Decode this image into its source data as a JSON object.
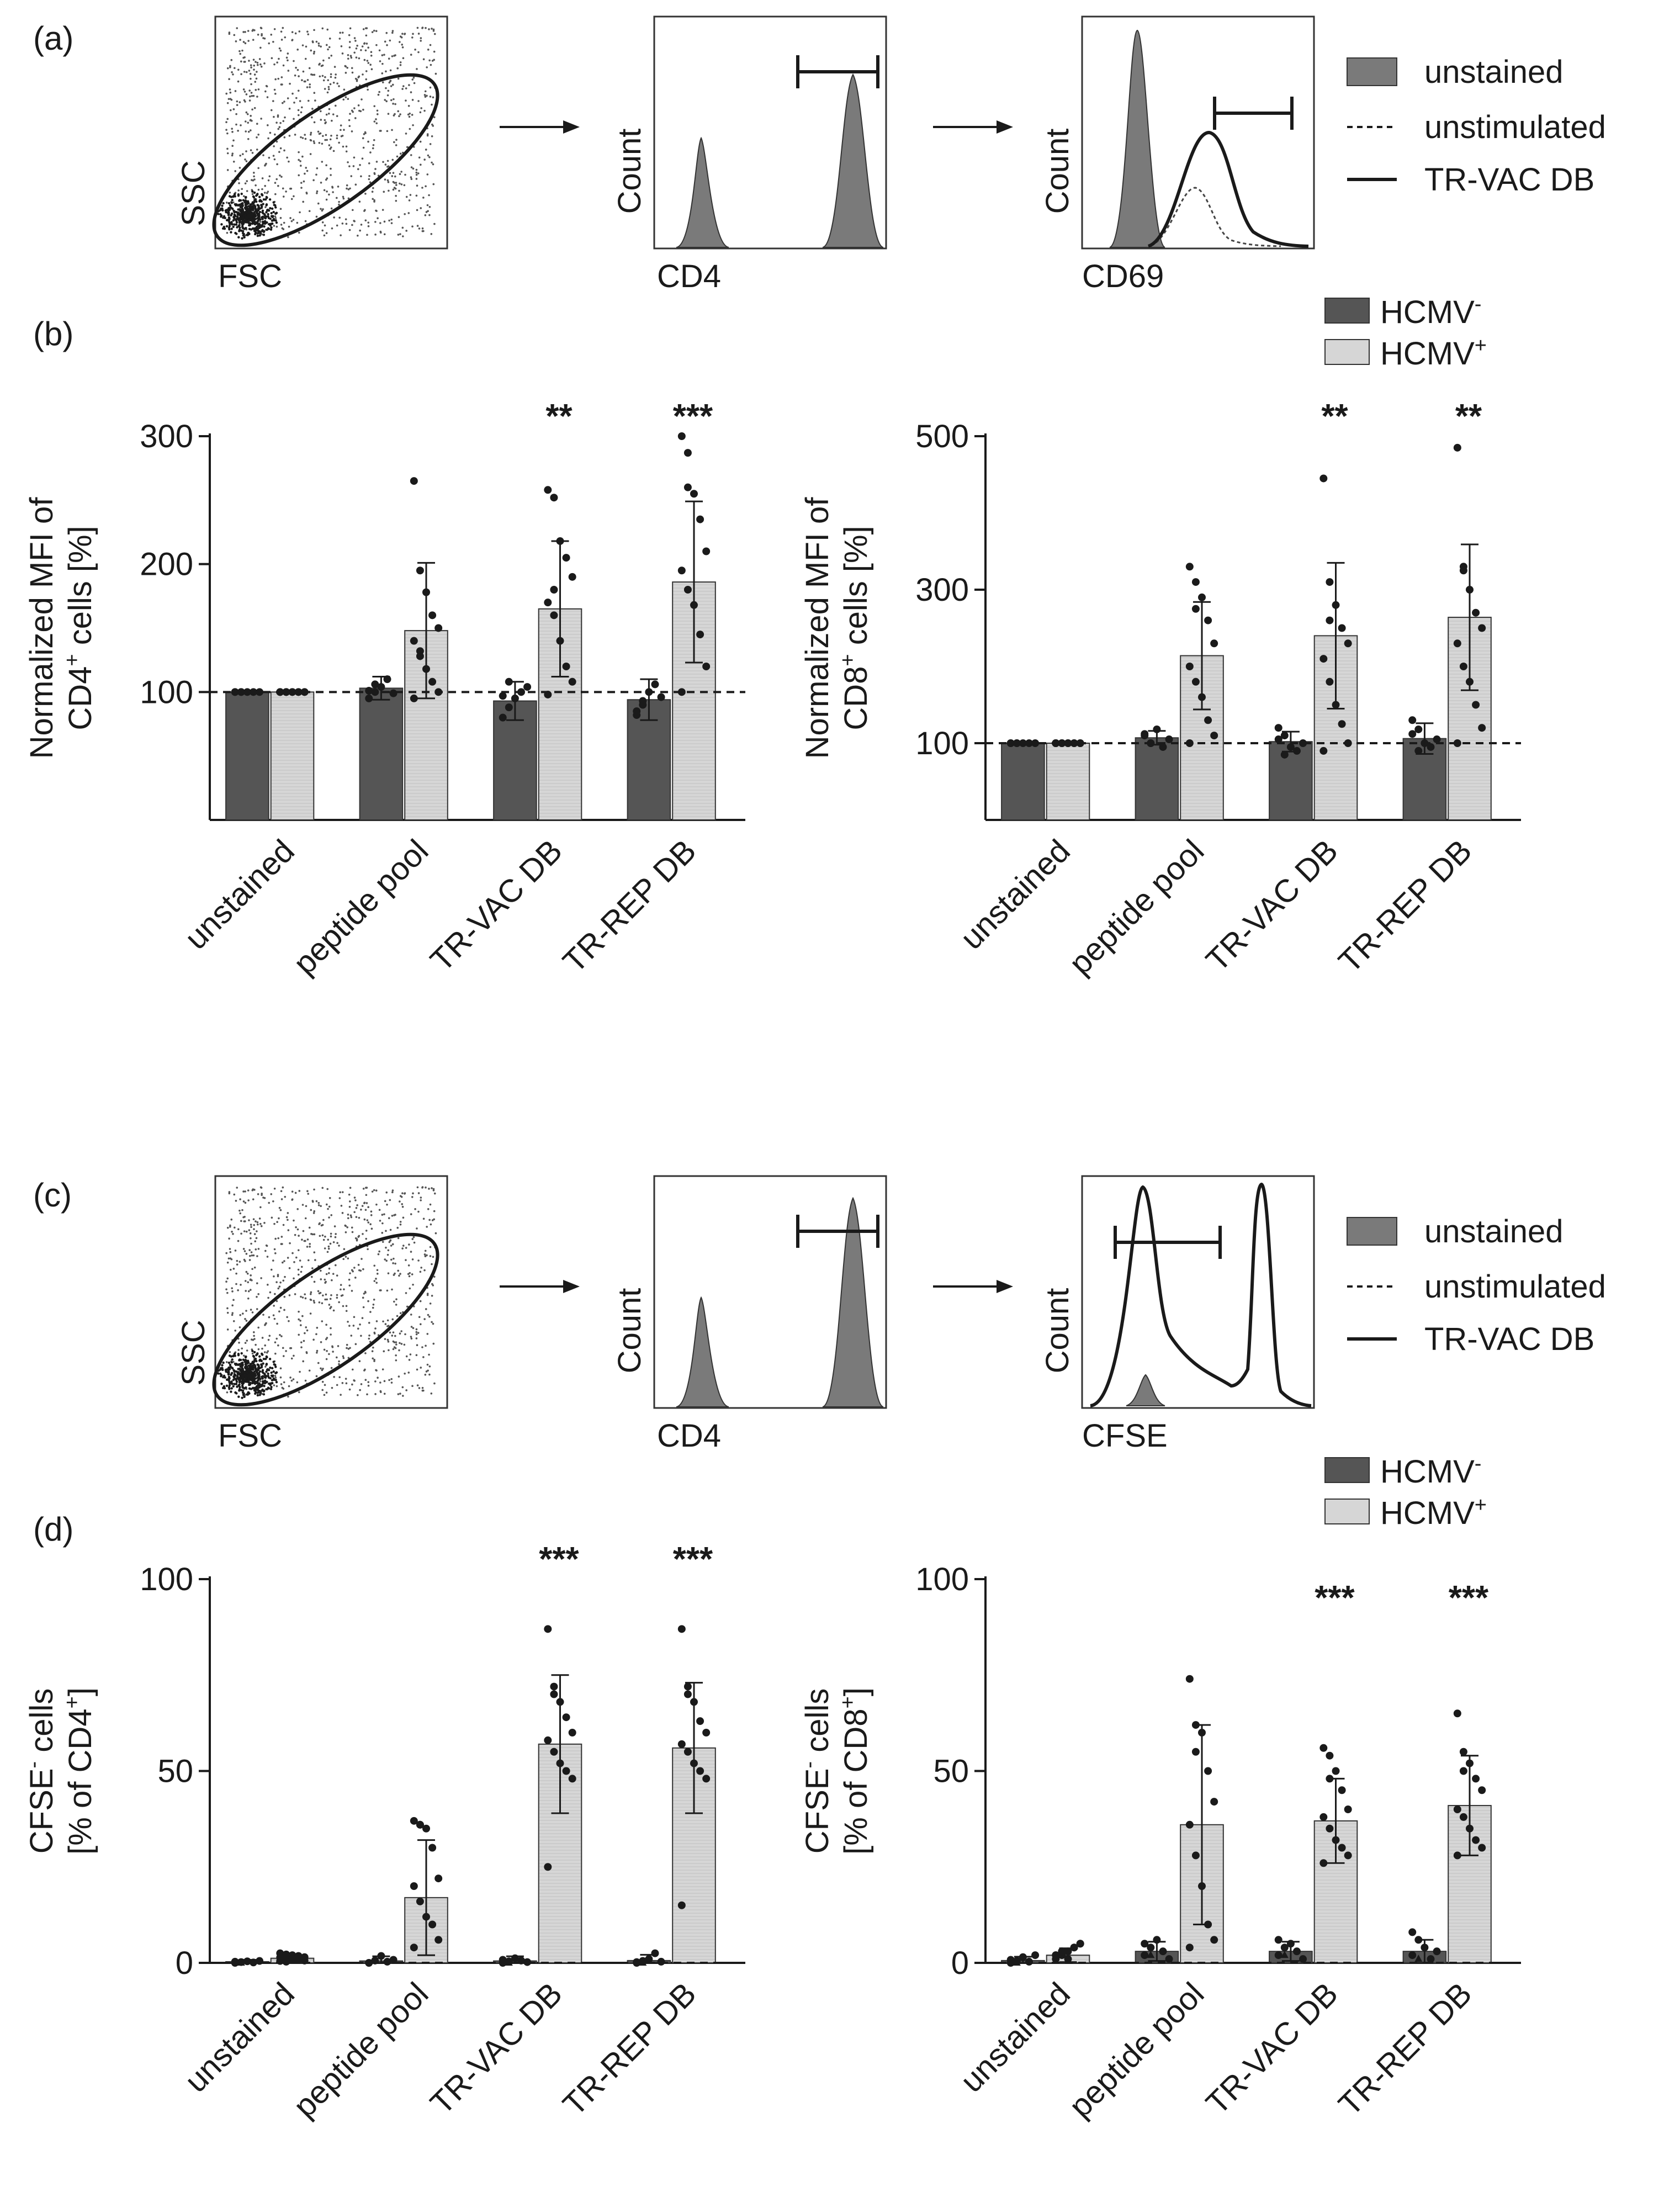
{
  "colors": {
    "hcmv_neg": "#555555",
    "hcmv_pos": "#d6d6d6",
    "flow_fill": "#7a7a7a",
    "ink": "#1a1a1a"
  },
  "panel_labels": {
    "a": "(a)",
    "b": "(b)",
    "c": "(c)",
    "d": "(d)"
  },
  "flow_labels": {
    "ssc": "SSC",
    "fsc": "FSC",
    "count": "Count",
    "cd4": "CD4",
    "cd69": "CD69",
    "cfse": "CFSE"
  },
  "flow_legend": {
    "unstained": "unstained",
    "unstimulated": "unstimulated",
    "trvac": "TR-VAC DB"
  },
  "group_legend": {
    "neg": "HCMV",
    "neg_sup": "-",
    "pos": "HCMV",
    "pos_sup": "+"
  },
  "categories": [
    "unstained",
    "peptide pool",
    "TR-VAC DB",
    "TR-REP DB"
  ],
  "chart_data": [
    {
      "id": "b_cd4",
      "type": "bar",
      "ylabel_line1": "Normalized MFI of",
      "ylabel_line2": "CD4",
      "ylabel_line2_sup": "+",
      "ylabel_line2_tail": " cells [%]",
      "ylim": [
        0,
        300
      ],
      "yticks": [
        100,
        200,
        300
      ],
      "reference_line": 100,
      "categories": [
        "unstained",
        "peptide pool",
        "TR-VAC DB",
        "TR-REP DB"
      ],
      "series": [
        {
          "name": "HCMV-",
          "mean": [
            100,
            103,
            93,
            94
          ],
          "sd": [
            0,
            9,
            15,
            16
          ]
        },
        {
          "name": "HCMV+",
          "mean": [
            100,
            148,
            165,
            186
          ],
          "sd": [
            0,
            53,
            53,
            63
          ]
        }
      ],
      "significance": [
        "",
        "",
        "**",
        "***"
      ],
      "points": {
        "neg": [
          [
            100,
            100,
            100,
            100,
            100,
            100,
            100
          ],
          [
            95,
            100,
            104,
            110,
            99,
            101,
            106
          ],
          [
            80,
            88,
            95,
            100,
            104,
            97,
            108
          ],
          [
            85,
            90,
            100,
            106,
            96,
            82,
            93
          ]
        ],
        "pos": [
          [
            100,
            100,
            100,
            100,
            100,
            100,
            100,
            100,
            100,
            100,
            100,
            100
          ],
          [
            265,
            195,
            178,
            160,
            150,
            140,
            128,
            118,
            108,
            100,
            95,
            132
          ],
          [
            258,
            252,
            218,
            205,
            190,
            170,
            160,
            140,
            120,
            108,
            98,
            180
          ],
          [
            300,
            287,
            255,
            235,
            210,
            195,
            180,
            168,
            145,
            120,
            100,
            260
          ]
        ]
      }
    },
    {
      "id": "b_cd8",
      "type": "bar",
      "ylabel_line1": "Normalized MFI of",
      "ylabel_line2": "CD8",
      "ylabel_line2_sup": "+",
      "ylabel_line2_tail": " cells [%]",
      "ylim": [
        0,
        500
      ],
      "yticks": [
        100,
        300,
        500
      ],
      "reference_line": 100,
      "categories": [
        "unstained",
        "peptide pool",
        "TR-VAC DB",
        "TR-REP DB"
      ],
      "series": [
        {
          "name": "HCMV-",
          "mean": [
            100,
            107,
            102,
            106
          ],
          "sd": [
            0,
            9,
            13,
            20
          ]
        },
        {
          "name": "HCMV+",
          "mean": [
            100,
            214,
            240,
            264
          ],
          "sd": [
            0,
            70,
            95,
            95
          ]
        }
      ],
      "significance": [
        "",
        "",
        "**",
        "**"
      ],
      "points": {
        "neg": [
          [
            100,
            100,
            100,
            100,
            100,
            100,
            100
          ],
          [
            112,
            100,
            118,
            95,
            105,
            110,
            100
          ],
          [
            120,
            110,
            95,
            90,
            100,
            105,
            85
          ],
          [
            130,
            118,
            100,
            95,
            105,
            112,
            90
          ]
        ],
        "pos": [
          [
            100,
            100,
            100,
            100,
            100,
            100,
            100,
            100,
            100,
            100,
            100,
            100
          ],
          [
            330,
            310,
            290,
            260,
            230,
            200,
            180,
            160,
            130,
            110,
            100,
            275
          ],
          [
            445,
            310,
            280,
            250,
            230,
            210,
            180,
            150,
            125,
            100,
            90,
            260
          ],
          [
            485,
            330,
            300,
            270,
            250,
            230,
            200,
            180,
            150,
            120,
            100,
            325
          ]
        ]
      }
    },
    {
      "id": "d_cd4",
      "type": "bar",
      "ylabel_line1": "CFSE",
      "ylabel_line1_sup": "-",
      "ylabel_line1_tail": " cells",
      "ylabel_line2": "[% of CD4",
      "ylabel_line2_sup": "+",
      "ylabel_line2_tail": "]",
      "ylim": [
        0,
        100
      ],
      "yticks": [
        0,
        50,
        100
      ],
      "reference_line": 0,
      "categories": [
        "unstained",
        "peptide pool",
        "TR-VAC DB",
        "TR-REP DB"
      ],
      "series": [
        {
          "name": "HCMV-",
          "mean": [
            0.3,
            0.5,
            0.5,
            0.6
          ],
          "sd": [
            0.5,
            1.2,
            1.2,
            1.5
          ]
        },
        {
          "name": "HCMV+",
          "mean": [
            1.2,
            17,
            57,
            56
          ],
          "sd": [
            1,
            15,
            18,
            17
          ]
        }
      ],
      "significance": [
        "",
        "",
        "***",
        "***"
      ],
      "points": {
        "neg": [
          [
            0,
            0.2,
            0.4,
            0.1,
            0.5,
            0.3,
            0
          ],
          [
            0,
            0.6,
            1.8,
            0.3,
            0.8,
            0,
            0.5
          ],
          [
            0,
            0.4,
            1.2,
            0.6,
            0.2,
            0.8,
            0
          ],
          [
            0,
            0.5,
            1.0,
            2.5,
            0.3,
            0.2,
            0
          ]
        ],
        "pos": [
          [
            0.5,
            1.2,
            2.0,
            0.8,
            1.5,
            2.5,
            0.3,
            1.0,
            1.8,
            0.6,
            1.4,
            2.2
          ],
          [
            37,
            36,
            35,
            30,
            22,
            20,
            16,
            12,
            10,
            6,
            4,
            36
          ],
          [
            87,
            72,
            68,
            64,
            60,
            58,
            55,
            52,
            50,
            48,
            25,
            70
          ],
          [
            87,
            72,
            68,
            63,
            60,
            57,
            55,
            52,
            50,
            48,
            15,
            70
          ]
        ]
      }
    },
    {
      "id": "d_cd8",
      "type": "bar",
      "ylabel_line1": "CFSE",
      "ylabel_line1_sup": "-",
      "ylabel_line1_tail": " cells",
      "ylabel_line2": "[% of CD8",
      "ylabel_line2_sup": "+",
      "ylabel_line2_tail": "]",
      "ylim": [
        0,
        100
      ],
      "yticks": [
        0,
        50,
        100
      ],
      "reference_line": 0,
      "categories": [
        "unstained",
        "peptide pool",
        "TR-VAC DB",
        "TR-REP DB"
      ],
      "series": [
        {
          "name": "HCMV-",
          "mean": [
            0.6,
            3,
            3,
            3
          ],
          "sd": [
            1,
            2.5,
            2.5,
            3
          ]
        },
        {
          "name": "HCMV+",
          "mean": [
            2,
            36,
            37,
            41
          ],
          "sd": [
            1.8,
            26,
            11,
            13
          ]
        }
      ],
      "significance": [
        "",
        "",
        "***",
        "***"
      ],
      "points": {
        "neg": [
          [
            0,
            0.5,
            1.5,
            0.3,
            2.0,
            0.8,
            0
          ],
          [
            2,
            4,
            6,
            3,
            1,
            5,
            2
          ],
          [
            2,
            4,
            5,
            3,
            1,
            6,
            2
          ],
          [
            2,
            6,
            4,
            1,
            3,
            8,
            1
          ]
        ],
        "pos": [
          [
            1,
            2,
            3,
            4,
            5,
            2,
            3,
            1,
            4,
            5,
            2,
            3
          ],
          [
            74,
            62,
            60,
            50,
            42,
            36,
            28,
            20,
            10,
            6,
            4,
            55
          ],
          [
            56,
            54,
            50,
            45,
            40,
            38,
            35,
            32,
            30,
            28,
            26,
            48
          ],
          [
            65,
            55,
            52,
            48,
            45,
            40,
            38,
            35,
            32,
            30,
            28,
            50
          ]
        ]
      }
    }
  ]
}
